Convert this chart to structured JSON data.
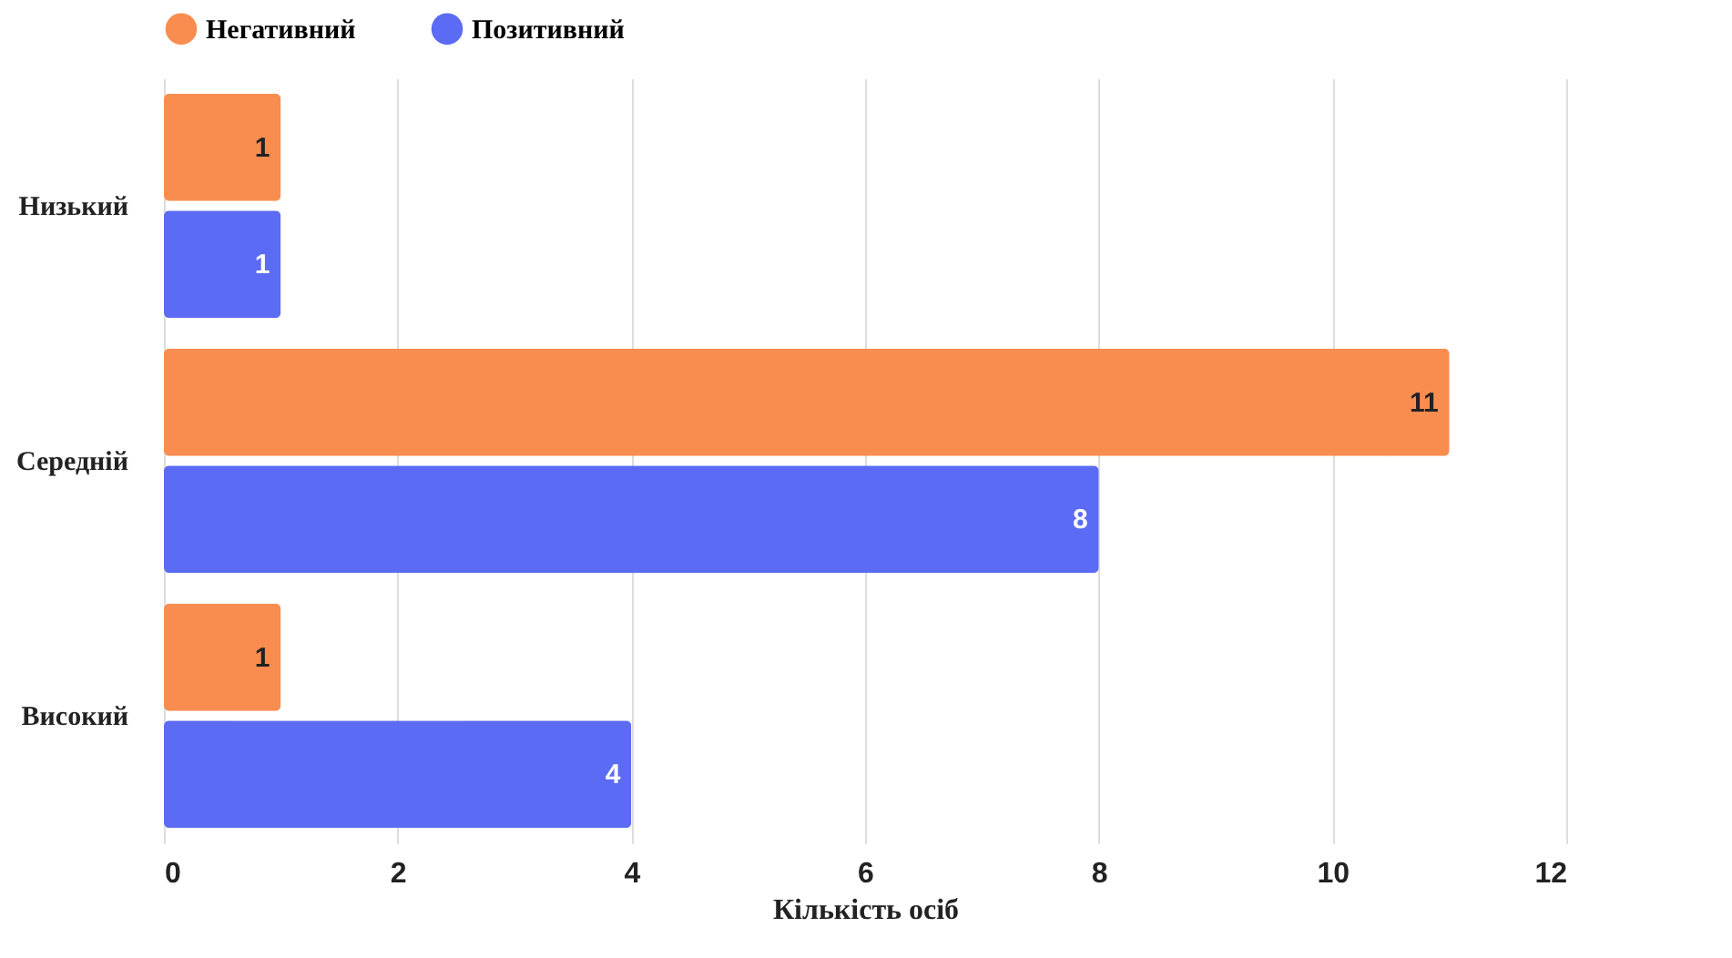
{
  "chart_data": {
    "type": "bar",
    "orientation": "horizontal",
    "categories": [
      "Низький",
      "Середній",
      "Високий"
    ],
    "series": [
      {
        "name": "Негативний",
        "color": "#f98d4f",
        "values": [
          1,
          11,
          1
        ]
      },
      {
        "name": "Позитивний",
        "color": "#5b6bf3",
        "values": [
          1,
          8,
          4
        ]
      }
    ],
    "xlim": [
      0,
      12
    ],
    "xticks": [
      0,
      2,
      4,
      6,
      8,
      10,
      12
    ],
    "xlabel": "Кількість осіб",
    "grid": "x",
    "legend": "top",
    "data_labels": true
  }
}
